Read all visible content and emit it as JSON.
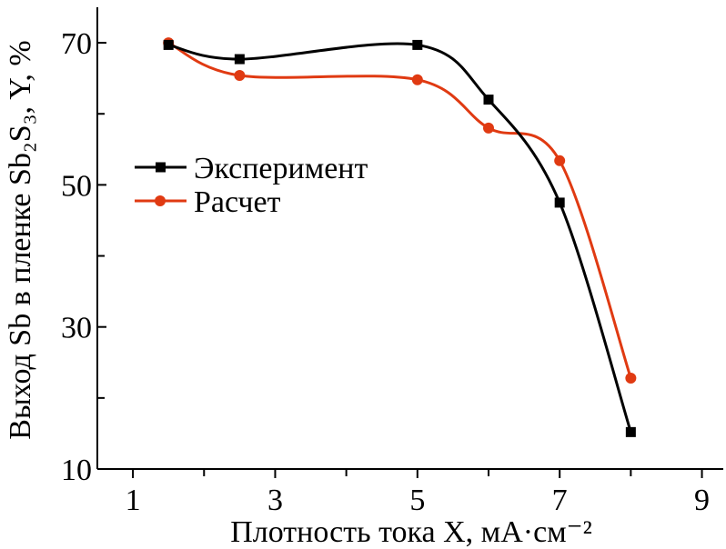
{
  "chart_data": {
    "type": "line",
    "xlabel": "Плотность тока X, мА·см⁻²",
    "ylabel": "Выход Sb в пленке Sb₂S₃, Y, %",
    "xlim": [
      0.5,
      9.3
    ],
    "ylim": [
      10,
      75
    ],
    "xticks": [
      1,
      3,
      5,
      7,
      9
    ],
    "xminor": [
      2,
      4,
      6,
      8
    ],
    "yticks": [
      10,
      30,
      50,
      70
    ],
    "yminor": [
      20,
      40,
      60
    ],
    "grid": false,
    "legend_position": "center-left",
    "series": [
      {
        "name": "Эксперимент",
        "marker": "square",
        "color": "#000000",
        "x": [
          1.5,
          2.5,
          5,
          6,
          7,
          8
        ],
        "y": [
          69.7,
          67.7,
          69.7,
          62.0,
          47.5,
          15.2
        ]
      },
      {
        "name": "Расчет",
        "marker": "circle",
        "color": "#e03a12",
        "x": [
          1.5,
          2.5,
          5,
          6,
          7,
          8
        ],
        "y": [
          70.0,
          65.4,
          64.8,
          58.0,
          53.4,
          22.8
        ]
      }
    ]
  }
}
